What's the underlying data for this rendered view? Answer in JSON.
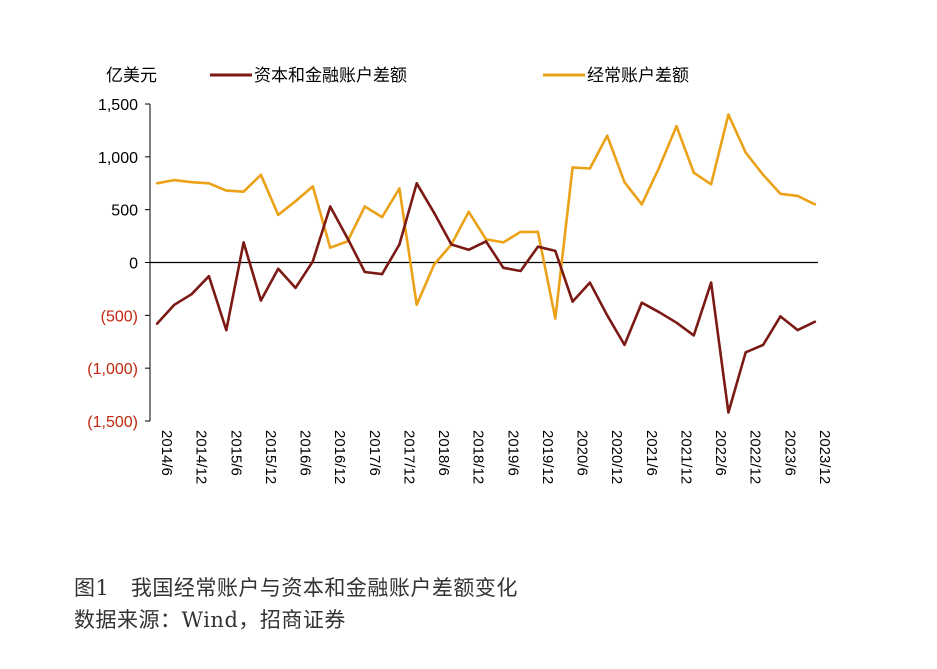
{
  "chart_data": {
    "type": "line",
    "unit_label": "亿美元",
    "y_tick_labels": [
      "1,500",
      "1,000",
      "500",
      "0",
      "(500)",
      "(1,000)",
      "(1,500)"
    ],
    "y_tick_values": [
      1500,
      1000,
      500,
      0,
      -500,
      -1000,
      -1500
    ],
    "ylim": [
      -1500,
      1500
    ],
    "x_tick_labels": [
      "2014/6",
      "2014/12",
      "2015/6",
      "2015/12",
      "2016/6",
      "2016/12",
      "2017/6",
      "2017/12",
      "2018/6",
      "2018/12",
      "2019/6",
      "2019/12",
      "2020/6",
      "2020/12",
      "2021/6",
      "2021/12",
      "2022/6",
      "2022/12",
      "2023/6",
      "2023/12"
    ],
    "x": [
      "2014/6",
      "2014/9",
      "2014/12",
      "2015/3",
      "2015/6",
      "2015/9",
      "2015/12",
      "2016/3",
      "2016/6",
      "2016/9",
      "2016/12",
      "2017/3",
      "2017/6",
      "2017/9",
      "2017/12",
      "2018/3",
      "2018/6",
      "2018/9",
      "2018/12",
      "2019/3",
      "2019/6",
      "2019/9",
      "2019/12",
      "2020/3",
      "2020/6",
      "2020/9",
      "2020/12",
      "2021/3",
      "2021/6",
      "2021/9",
      "2021/12",
      "2022/3",
      "2022/6",
      "2022/9",
      "2022/12",
      "2023/3",
      "2023/6",
      "2023/9",
      "2023/12"
    ],
    "series": [
      {
        "name": "资本和金融账户差额",
        "color": "#7b1a14",
        "values": [
          -580,
          -400,
          -300,
          -130,
          -640,
          190,
          -360,
          -60,
          -240,
          10,
          530,
          230,
          -90,
          -110,
          170,
          750,
          470,
          170,
          120,
          200,
          -50,
          -80,
          150,
          110,
          -370,
          -190,
          -500,
          -780,
          -380,
          -470,
          -570,
          -690,
          -190,
          -1420,
          -850,
          -780,
          -510,
          -640,
          -560
        ]
      },
      {
        "name": "经常账户差额",
        "color": "#eba118",
        "values": [
          750,
          780,
          760,
          750,
          680,
          670,
          830,
          450,
          580,
          720,
          140,
          200,
          530,
          430,
          700,
          -400,
          -20,
          170,
          480,
          220,
          190,
          290,
          290,
          -530,
          900,
          890,
          1200,
          760,
          550,
          900,
          1290,
          850,
          740,
          1400,
          1040,
          830,
          650,
          630,
          550
        ]
      }
    ]
  },
  "caption": {
    "title": "图1　我国经常账户与资本和金融账户差额变化",
    "source": "数据来源：Wind，招商证券"
  }
}
